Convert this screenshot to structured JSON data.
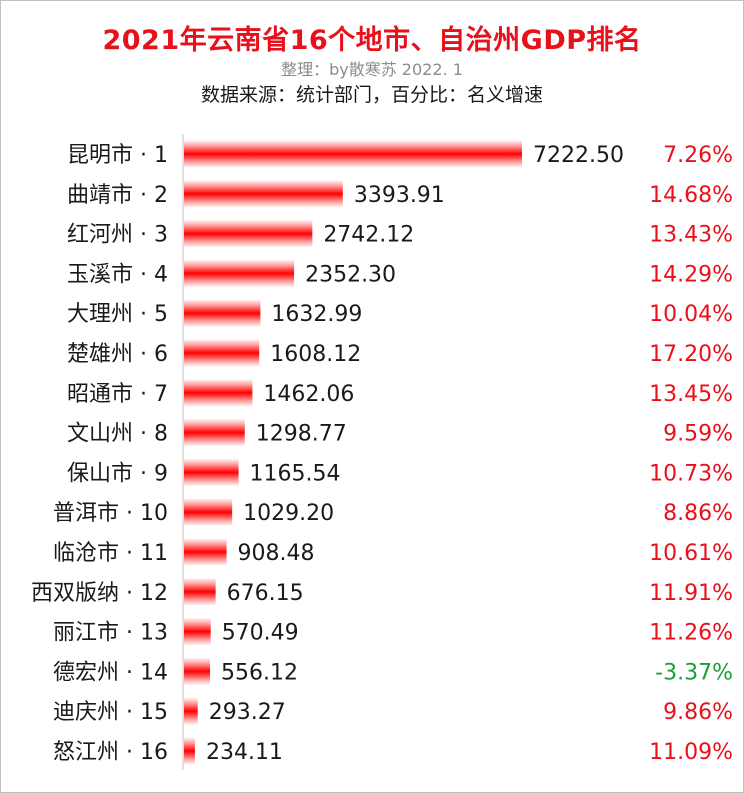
{
  "title": "2021年云南省16个地市、自治州GDP排名",
  "subtitle": "整理：by散寒苏  2022. 1",
  "source": "数据来源：统计部门，百分比：名义增速",
  "colors": {
    "bar": "#ff0000",
    "growth_positive": "#e8101a",
    "growth_negative": "#1a9e3a",
    "axis": "#bfbfbf"
  },
  "chart_data": {
    "type": "bar",
    "orientation": "horizontal",
    "categories": [
      "昆明市 · 1",
      "曲靖市 · 2",
      "红河州 · 3",
      "玉溪市 · 4",
      "大理州 · 5",
      "楚雄州 · 6",
      "昭通市 · 7",
      "文山州 · 8",
      "保山市 · 9",
      "普洱市 · 10",
      "临沧市 · 11",
      "西双版纳 · 12",
      "丽江市 · 13",
      "德宏州 · 14",
      "迪庆州 · 15",
      "怒江州 · 16"
    ],
    "values": [
      7222.5,
      3393.91,
      2742.12,
      2352.3,
      1632.99,
      1608.12,
      1462.06,
      1298.77,
      1165.54,
      1029.2,
      908.48,
      676.15,
      570.49,
      556.12,
      293.27,
      234.11
    ],
    "value_labels": [
      "7222.50",
      "3393.91",
      "2742.12",
      "2352.30",
      "1632.99",
      "1608.12",
      "1462.06",
      "1298.77",
      "1165.54",
      "1029.20",
      "908.48",
      "676.15",
      "570.49",
      "556.12",
      "293.27",
      "234.11"
    ],
    "growth": [
      "7.26%",
      "14.68%",
      "13.43%",
      "14.29%",
      "10.04%",
      "17.20%",
      "13.45%",
      "9.59%",
      "10.73%",
      "8.86%",
      "10.61%",
      "11.91%",
      "11.26%",
      "-3.37%",
      "9.86%",
      "11.09%"
    ],
    "xlim": [
      0,
      7700
    ],
    "grid": false,
    "legend": "none"
  }
}
